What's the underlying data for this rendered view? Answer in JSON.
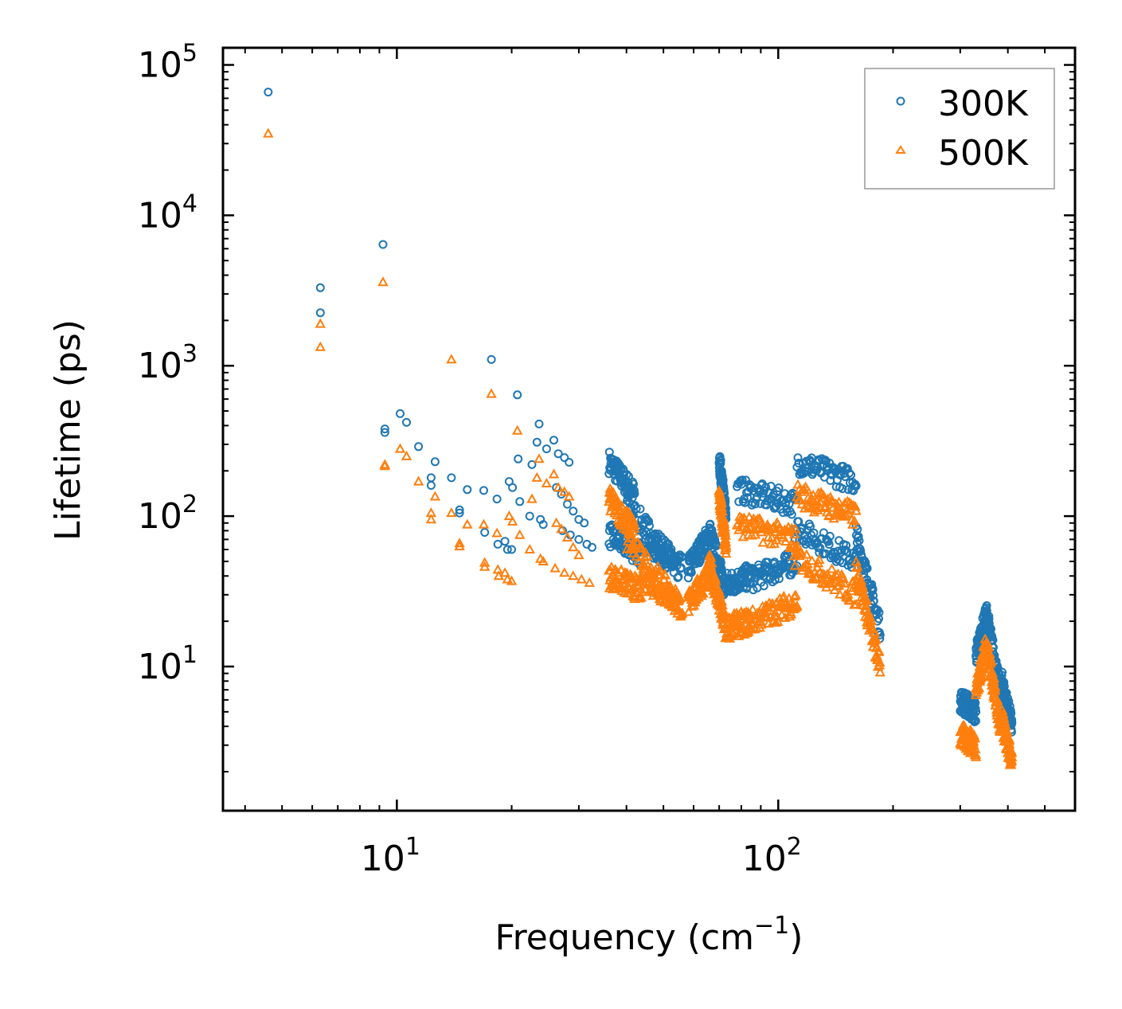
{
  "chart_data": {
    "type": "scatter",
    "title": "",
    "xlabel": "Frequency (cm",
    "xlabel_sup": "−1",
    "xlabel_close": ")",
    "ylabel": "Lifetime (ps)",
    "xscale": "log",
    "yscale": "log",
    "xlim": [
      3.5,
      600
    ],
    "ylim": [
      1.1,
      130000
    ],
    "x_ticks": [
      {
        "value": 10,
        "base": "10",
        "exp": "1"
      },
      {
        "value": 100,
        "base": "10",
        "exp": "2"
      }
    ],
    "y_ticks": [
      {
        "value": 10,
        "base": "10",
        "exp": "1"
      },
      {
        "value": 100,
        "base": "10",
        "exp": "2"
      },
      {
        "value": 1000,
        "base": "10",
        "exp": "3"
      },
      {
        "value": 10000,
        "base": "10",
        "exp": "4"
      },
      {
        "value": 100000,
        "base": "10",
        "exp": "5"
      }
    ],
    "legend_position": "top-right",
    "series": [
      {
        "name": "300K",
        "marker": "circle",
        "color": "#1f77b4",
        "points": [
          [
            4.6,
            66000
          ],
          [
            6.3,
            3300
          ],
          [
            6.3,
            2250
          ],
          [
            9.2,
            6400
          ],
          [
            9.3,
            380
          ],
          [
            9.3,
            360
          ],
          [
            10.2,
            480
          ],
          [
            10.6,
            420
          ],
          [
            11.4,
            290
          ],
          [
            12.3,
            180
          ],
          [
            12.3,
            160
          ],
          [
            12.6,
            230
          ],
          [
            13.9,
            180
          ],
          [
            14.6,
            110
          ],
          [
            14.6,
            105
          ],
          [
            15.3,
            150
          ],
          [
            16.9,
            148
          ],
          [
            17.0,
            78
          ],
          [
            17.7,
            1100
          ],
          [
            18.3,
            130
          ],
          [
            18.4,
            65
          ],
          [
            19.2,
            68
          ],
          [
            19.5,
            60
          ],
          [
            19.7,
            170
          ],
          [
            20.0,
            60
          ],
          [
            20.1,
            155
          ],
          [
            20.7,
            640
          ],
          [
            20.8,
            240
          ],
          [
            21.0,
            125
          ],
          [
            22.3,
            100
          ],
          [
            22.6,
            220
          ],
          [
            23.3,
            310
          ],
          [
            23.6,
            410
          ],
          [
            23.8,
            95
          ],
          [
            24.2,
            88
          ],
          [
            24.7,
            280
          ],
          [
            25.8,
            320
          ],
          [
            26.5,
            260
          ],
          [
            27.5,
            245
          ],
          [
            28.3,
            228
          ],
          [
            26.2,
            155
          ],
          [
            27.0,
            140
          ],
          [
            28.0,
            120
          ],
          [
            29.0,
            108
          ],
          [
            30.0,
            95
          ],
          [
            31.0,
            90
          ],
          [
            27.2,
            80
          ],
          [
            28.5,
            75
          ],
          [
            30.0,
            70
          ],
          [
            31.5,
            65
          ],
          [
            32.5,
            62
          ]
        ],
        "bands": [
          {
            "x": [
              36,
              42
            ],
            "y": [
              230,
              140
            ]
          },
          {
            "x": [
              40,
              55
            ],
            "y": [
              120,
              45
            ]
          },
          {
            "x": [
              36,
              44
            ],
            "y": [
              75,
              55
            ]
          },
          {
            "x": [
              44,
              56
            ],
            "y": [
              70,
              45
            ]
          },
          {
            "x": [
              58,
              66
            ],
            "y": [
              45,
              75
            ]
          },
          {
            "x": [
              66,
              72
            ],
            "y": [
              80,
              35
            ]
          },
          {
            "x": [
              70,
              73
            ],
            "y": [
              240,
              100
            ]
          },
          {
            "x": [
              72,
              85
            ],
            "y": [
              35,
              40
            ]
          },
          {
            "x": [
              85,
              112
            ],
            "y": [
              38,
              50
            ]
          },
          {
            "x": [
              78,
              112
            ],
            "y": [
              150,
              120
            ]
          },
          {
            "x": [
              112,
              160
            ],
            "y": [
              230,
              170
            ]
          },
          {
            "x": [
              110,
              160
            ],
            "y": [
              85,
              50
            ]
          },
          {
            "x": [
              160,
              185
            ],
            "y": [
              75,
              18
            ]
          },
          {
            "x": [
              300,
              330
            ],
            "y": [
              6,
              5
            ]
          },
          {
            "x": [
              330,
              352
            ],
            "y": [
              12,
              22
            ]
          },
          {
            "x": [
              352,
              385
            ],
            "y": [
              22,
              6
            ]
          },
          {
            "x": [
              385,
              410
            ],
            "y": [
              8,
              4
            ]
          }
        ]
      },
      {
        "name": "500K",
        "marker": "triangle",
        "color": "#ff7f0e",
        "points": [
          [
            4.6,
            35000
          ],
          [
            6.3,
            1900
          ],
          [
            6.3,
            1330
          ],
          [
            9.2,
            3600
          ],
          [
            9.3,
            220
          ],
          [
            9.3,
            215
          ],
          [
            10.2,
            280
          ],
          [
            10.6,
            250
          ],
          [
            11.4,
            170
          ],
          [
            12.3,
            105
          ],
          [
            12.3,
            95
          ],
          [
            12.6,
            135
          ],
          [
            13.9,
            1100
          ],
          [
            13.9,
            105
          ],
          [
            14.6,
            66
          ],
          [
            14.6,
            63
          ],
          [
            15.3,
            88
          ],
          [
            16.9,
            88
          ],
          [
            17.0,
            49
          ],
          [
            17.0,
            46
          ],
          [
            17.7,
            650
          ],
          [
            18.3,
            77
          ],
          [
            18.4,
            44
          ],
          [
            18.5,
            40
          ],
          [
            19.2,
            42
          ],
          [
            19.5,
            38
          ],
          [
            19.7,
            100
          ],
          [
            20.0,
            37
          ],
          [
            20.1,
            92
          ],
          [
            20.7,
            370
          ],
          [
            21.0,
            75
          ],
          [
            22.3,
            60
          ],
          [
            22.6,
            130
          ],
          [
            23.3,
            180
          ],
          [
            23.6,
            240
          ],
          [
            23.8,
            52
          ],
          [
            24.2,
            50
          ],
          [
            24.7,
            165
          ],
          [
            25.8,
            190
          ],
          [
            26.5,
            155
          ],
          [
            27.5,
            145
          ],
          [
            28.3,
            135
          ],
          [
            26.2,
            90
          ],
          [
            27.0,
            82
          ],
          [
            28.0,
            72
          ],
          [
            29.0,
            62
          ],
          [
            30.0,
            55
          ],
          [
            26.0,
            45
          ],
          [
            27.5,
            42
          ],
          [
            29.0,
            40
          ],
          [
            30.5,
            38
          ],
          [
            32.0,
            36
          ]
        ],
        "bands": [
          {
            "x": [
              36,
              42
            ],
            "y": [
              130,
              80
            ]
          },
          {
            "x": [
              40,
              55
            ],
            "y": [
              70,
              26
            ]
          },
          {
            "x": [
              36,
              44
            ],
            "y": [
              40,
              32
            ]
          },
          {
            "x": [
              44,
              56
            ],
            "y": [
              40,
              25
            ]
          },
          {
            "x": [
              58,
              66
            ],
            "y": [
              26,
              42
            ]
          },
          {
            "x": [
              66,
              72
            ],
            "y": [
              48,
              20
            ]
          },
          {
            "x": [
              70,
              73
            ],
            "y": [
              140,
              60
            ]
          },
          {
            "x": [
              72,
              85
            ],
            "y": [
              18,
              20
            ]
          },
          {
            "x": [
              85,
              112
            ],
            "y": [
              20,
              27
            ]
          },
          {
            "x": [
              78,
              112
            ],
            "y": [
              88,
              70
            ]
          },
          {
            "x": [
              112,
              160
            ],
            "y": [
              140,
              100
            ]
          },
          {
            "x": [
              110,
              160
            ],
            "y": [
              55,
              30
            ]
          },
          {
            "x": [
              160,
              185
            ],
            "y": [
              45,
              10
            ]
          },
          {
            "x": [
              300,
              330
            ],
            "y": [
              3.5,
              3.0
            ]
          },
          {
            "x": [
              330,
              352
            ],
            "y": [
              7,
              14
            ]
          },
          {
            "x": [
              352,
              385
            ],
            "y": [
              14,
              3.5
            ]
          },
          {
            "x": [
              385,
              410
            ],
            "y": [
              4.5,
              2.3
            ]
          }
        ]
      }
    ]
  }
}
